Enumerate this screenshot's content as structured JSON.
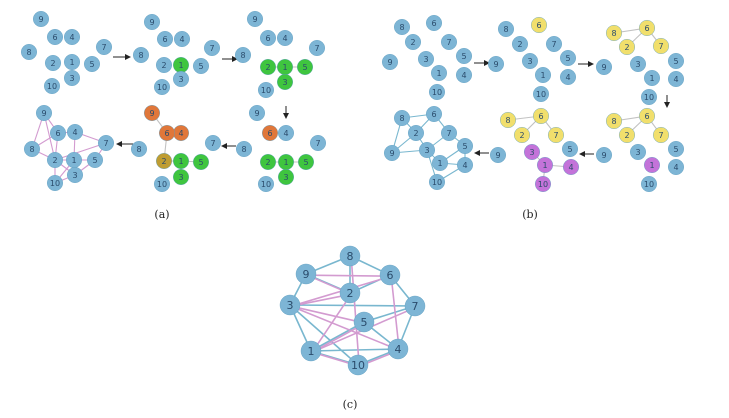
{
  "captions": {
    "a": "(a)",
    "b": "(b)",
    "c": "(c)"
  },
  "palette": {
    "blue": "#7db5d5",
    "green": "#3fc53f",
    "orange": "#e0773a",
    "olive": "#bf9d32",
    "yellow": "#f1df6c",
    "purple": "#c373d9",
    "edge_grey": "#c2c2c2",
    "edge_pink": "#d39bd0",
    "edge_blue": "#79b7cf",
    "arrow": "#222222"
  },
  "subgraphs": [
    {
      "id": "a1",
      "colors": {},
      "edges": [],
      "edge_color": "edge_grey"
    },
    {
      "id": "a2",
      "colors": {
        "1": "green"
      },
      "edges": [],
      "edge_color": "edge_grey"
    },
    {
      "id": "a3",
      "colors": {
        "1": "green",
        "2": "green",
        "3": "green",
        "5": "green"
      },
      "edges": [
        [
          "2",
          "1"
        ],
        [
          "1",
          "5"
        ],
        [
          "1",
          "3"
        ]
      ],
      "edge_color": "edge_grey"
    },
    {
      "id": "a4",
      "colors": {
        "1": "green",
        "2": "green",
        "3": "green",
        "5": "green",
        "6": "orange"
      },
      "edges": [
        [
          "2",
          "1"
        ],
        [
          "1",
          "5"
        ],
        [
          "1",
          "3"
        ]
      ],
      "edge_color": "edge_grey"
    },
    {
      "id": "a5",
      "colors": {
        "1": "green",
        "2": "olive",
        "3": "green",
        "5": "green",
        "6": "orange",
        "4": "orange",
        "9": "orange"
      },
      "edges": [
        [
          "2",
          "1"
        ],
        [
          "1",
          "5"
        ],
        [
          "1",
          "3"
        ],
        [
          "9",
          "6"
        ],
        [
          "6",
          "4"
        ],
        [
          "6",
          "2"
        ]
      ],
      "edge_color": "edge_grey"
    },
    {
      "id": "a6",
      "colors": {},
      "edges": [
        [
          "9",
          "6"
        ],
        [
          "9",
          "8"
        ],
        [
          "9",
          "2"
        ],
        [
          "8",
          "6"
        ],
        [
          "8",
          "2"
        ],
        [
          "6",
          "4"
        ],
        [
          "6",
          "2"
        ],
        [
          "4",
          "1"
        ],
        [
          "4",
          "7"
        ],
        [
          "7",
          "5"
        ],
        [
          "7",
          "2"
        ],
        [
          "2",
          "1"
        ],
        [
          "2",
          "10"
        ],
        [
          "1",
          "5"
        ],
        [
          "1",
          "10"
        ],
        [
          "1",
          "3"
        ],
        [
          "3",
          "10"
        ],
        [
          "3",
          "5"
        ],
        [
          "2",
          "3"
        ]
      ],
      "edge_color": "edge_pink"
    },
    {
      "id": "b1",
      "colors": {},
      "edges": [],
      "edge_color": "edge_grey"
    },
    {
      "id": "b2",
      "colors": {
        "6": "yellow"
      },
      "edges": [],
      "edge_color": "edge_grey"
    },
    {
      "id": "b3",
      "colors": {
        "6": "yellow",
        "8": "yellow",
        "2": "yellow",
        "7": "yellow"
      },
      "edges": [
        [
          "8",
          "6"
        ],
        [
          "6",
          "2"
        ],
        [
          "6",
          "7"
        ]
      ],
      "edge_color": "edge_grey"
    },
    {
      "id": "b4",
      "colors": {
        "6": "yellow",
        "8": "yellow",
        "2": "yellow",
        "7": "yellow",
        "1": "purple"
      },
      "edges": [
        [
          "8",
          "6"
        ],
        [
          "6",
          "2"
        ],
        [
          "6",
          "7"
        ]
      ],
      "edge_color": "edge_grey"
    },
    {
      "id": "b5",
      "colors": {
        "6": "yellow",
        "8": "yellow",
        "2": "yellow",
        "7": "yellow",
        "1": "purple",
        "3": "purple",
        "4": "purple",
        "10": "purple"
      },
      "edges": [
        [
          "8",
          "6"
        ],
        [
          "6",
          "2"
        ],
        [
          "6",
          "7"
        ],
        [
          "3",
          "1"
        ],
        [
          "1",
          "4"
        ],
        [
          "1",
          "10"
        ]
      ],
      "edge_color": "edge_grey"
    },
    {
      "id": "b6",
      "colors": {},
      "edges": [
        [
          "8",
          "6"
        ],
        [
          "8",
          "2"
        ],
        [
          "8",
          "9"
        ],
        [
          "2",
          "6"
        ],
        [
          "2",
          "9"
        ],
        [
          "2",
          "3"
        ],
        [
          "9",
          "3"
        ],
        [
          "6",
          "7"
        ],
        [
          "7",
          "3"
        ],
        [
          "3",
          "1"
        ],
        [
          "3",
          "10"
        ],
        [
          "1",
          "5"
        ],
        [
          "1",
          "4"
        ],
        [
          "5",
          "4"
        ],
        [
          "10",
          "4"
        ],
        [
          "7",
          "5"
        ]
      ],
      "edge_color": "edge_blue"
    },
    {
      "id": "c",
      "colors": {},
      "edges": [
        [
          "8",
          "9",
          "edge_blue"
        ],
        [
          "8",
          "6",
          "edge_blue"
        ],
        [
          "9",
          "3",
          "edge_blue"
        ],
        [
          "6",
          "7",
          "edge_blue"
        ],
        [
          "3",
          "1",
          "edge_blue"
        ],
        [
          "7",
          "4",
          "edge_blue"
        ],
        [
          "1",
          "10",
          "edge_blue"
        ],
        [
          "10",
          "4",
          "edge_blue"
        ],
        [
          "9",
          "2",
          "edge_blue"
        ],
        [
          "3",
          "7",
          "edge_blue"
        ],
        [
          "5",
          "7",
          "edge_blue"
        ],
        [
          "5",
          "1",
          "edge_blue"
        ],
        [
          "5",
          "4",
          "edge_blue"
        ],
        [
          "3",
          "10",
          "edge_blue"
        ],
        [
          "1",
          "4",
          "edge_blue"
        ],
        [
          "8",
          "2",
          "edge_blue"
        ],
        [
          "2",
          "6",
          "edge_blue"
        ],
        [
          "8",
          "10",
          "edge_pink"
        ],
        [
          "9",
          "6",
          "edge_pink"
        ],
        [
          "9",
          "2",
          "edge_pink"
        ],
        [
          "2",
          "3",
          "edge_pink"
        ],
        [
          "2",
          "1",
          "edge_pink"
        ],
        [
          "6",
          "4",
          "edge_pink"
        ],
        [
          "3",
          "5",
          "edge_pink"
        ],
        [
          "1",
          "7",
          "edge_pink"
        ],
        [
          "3",
          "4",
          "edge_pink"
        ],
        [
          "10",
          "4",
          "edge_pink"
        ],
        [
          "1",
          "10",
          "edge_pink"
        ],
        [
          "6",
          "3",
          "edge_pink"
        ],
        [
          "1",
          "5",
          "edge_pink"
        ]
      ],
      "edge_color": "edge_blue"
    }
  ]
}
